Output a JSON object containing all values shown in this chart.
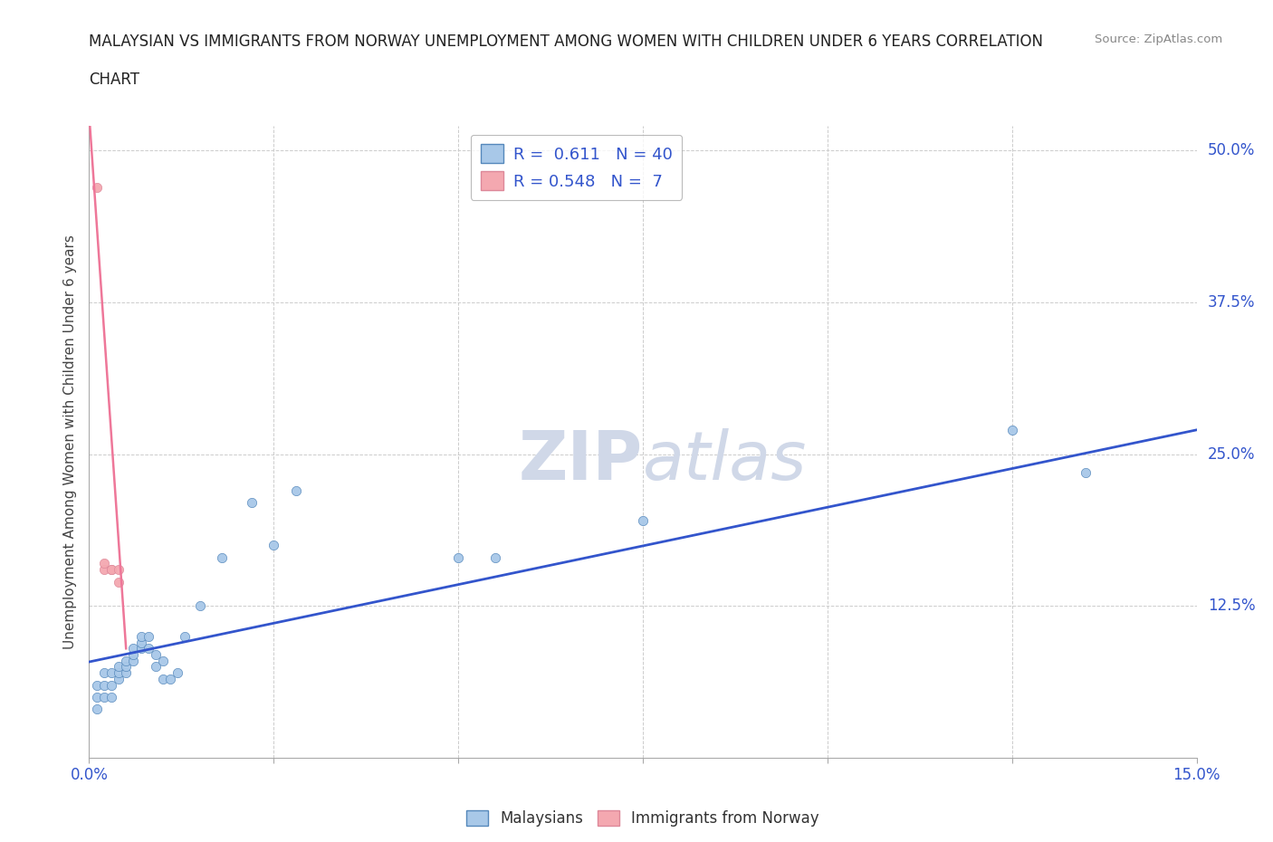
{
  "title_line1": "MALAYSIAN VS IMMIGRANTS FROM NORWAY UNEMPLOYMENT AMONG WOMEN WITH CHILDREN UNDER 6 YEARS CORRELATION",
  "title_line2": "CHART",
  "source": "Source: ZipAtlas.com",
  "ylabel": "Unemployment Among Women with Children Under 6 years",
  "xlim": [
    0.0,
    0.15
  ],
  "ylim": [
    0.0,
    0.52
  ],
  "xticks": [
    0.0,
    0.025,
    0.05,
    0.075,
    0.1,
    0.125,
    0.15
  ],
  "yticks": [
    0.0,
    0.125,
    0.25,
    0.375,
    0.5
  ],
  "ytick_labels": [
    "",
    "12.5%",
    "25.0%",
    "37.5%",
    "50.0%"
  ],
  "xtick_labels": [
    "0.0%",
    "",
    "",
    "",
    "",
    "",
    "15.0%"
  ],
  "blue_R": 0.611,
  "blue_N": 40,
  "pink_R": 0.548,
  "pink_N": 7,
  "blue_color": "#a8c8e8",
  "pink_color": "#f4a8b0",
  "blue_edge_color": "#5588bb",
  "pink_edge_color": "#dd8899",
  "blue_line_color": "#3355cc",
  "pink_line_color": "#ee7799",
  "grid_color": "#cccccc",
  "watermark_color": "#d0d8e8",
  "malaysian_x": [
    0.001,
    0.001,
    0.001,
    0.002,
    0.002,
    0.002,
    0.003,
    0.003,
    0.003,
    0.004,
    0.004,
    0.004,
    0.005,
    0.005,
    0.005,
    0.006,
    0.006,
    0.006,
    0.007,
    0.007,
    0.007,
    0.008,
    0.008,
    0.009,
    0.009,
    0.01,
    0.01,
    0.011,
    0.012,
    0.013,
    0.015,
    0.018,
    0.022,
    0.025,
    0.028,
    0.05,
    0.055,
    0.075,
    0.125,
    0.135
  ],
  "malaysian_y": [
    0.04,
    0.05,
    0.06,
    0.05,
    0.06,
    0.07,
    0.06,
    0.07,
    0.05,
    0.065,
    0.07,
    0.075,
    0.07,
    0.075,
    0.08,
    0.08,
    0.085,
    0.09,
    0.09,
    0.095,
    0.1,
    0.09,
    0.1,
    0.085,
    0.075,
    0.08,
    0.065,
    0.065,
    0.07,
    0.1,
    0.125,
    0.165,
    0.21,
    0.175,
    0.22,
    0.165,
    0.165,
    0.195,
    0.27,
    0.235
  ],
  "norway_x": [
    0.001,
    0.002,
    0.002,
    0.003,
    0.003,
    0.004,
    0.004
  ],
  "norway_y": [
    0.47,
    0.155,
    0.16,
    0.155,
    0.155,
    0.155,
    0.145
  ],
  "blue_line_x0": 0.0,
  "blue_line_y0": 0.079,
  "blue_line_x1": 0.15,
  "blue_line_y1": 0.27,
  "pink_line_x0": 0.0,
  "pink_line_y0": 0.53,
  "pink_line_x1": 0.005,
  "pink_line_y1": 0.09
}
